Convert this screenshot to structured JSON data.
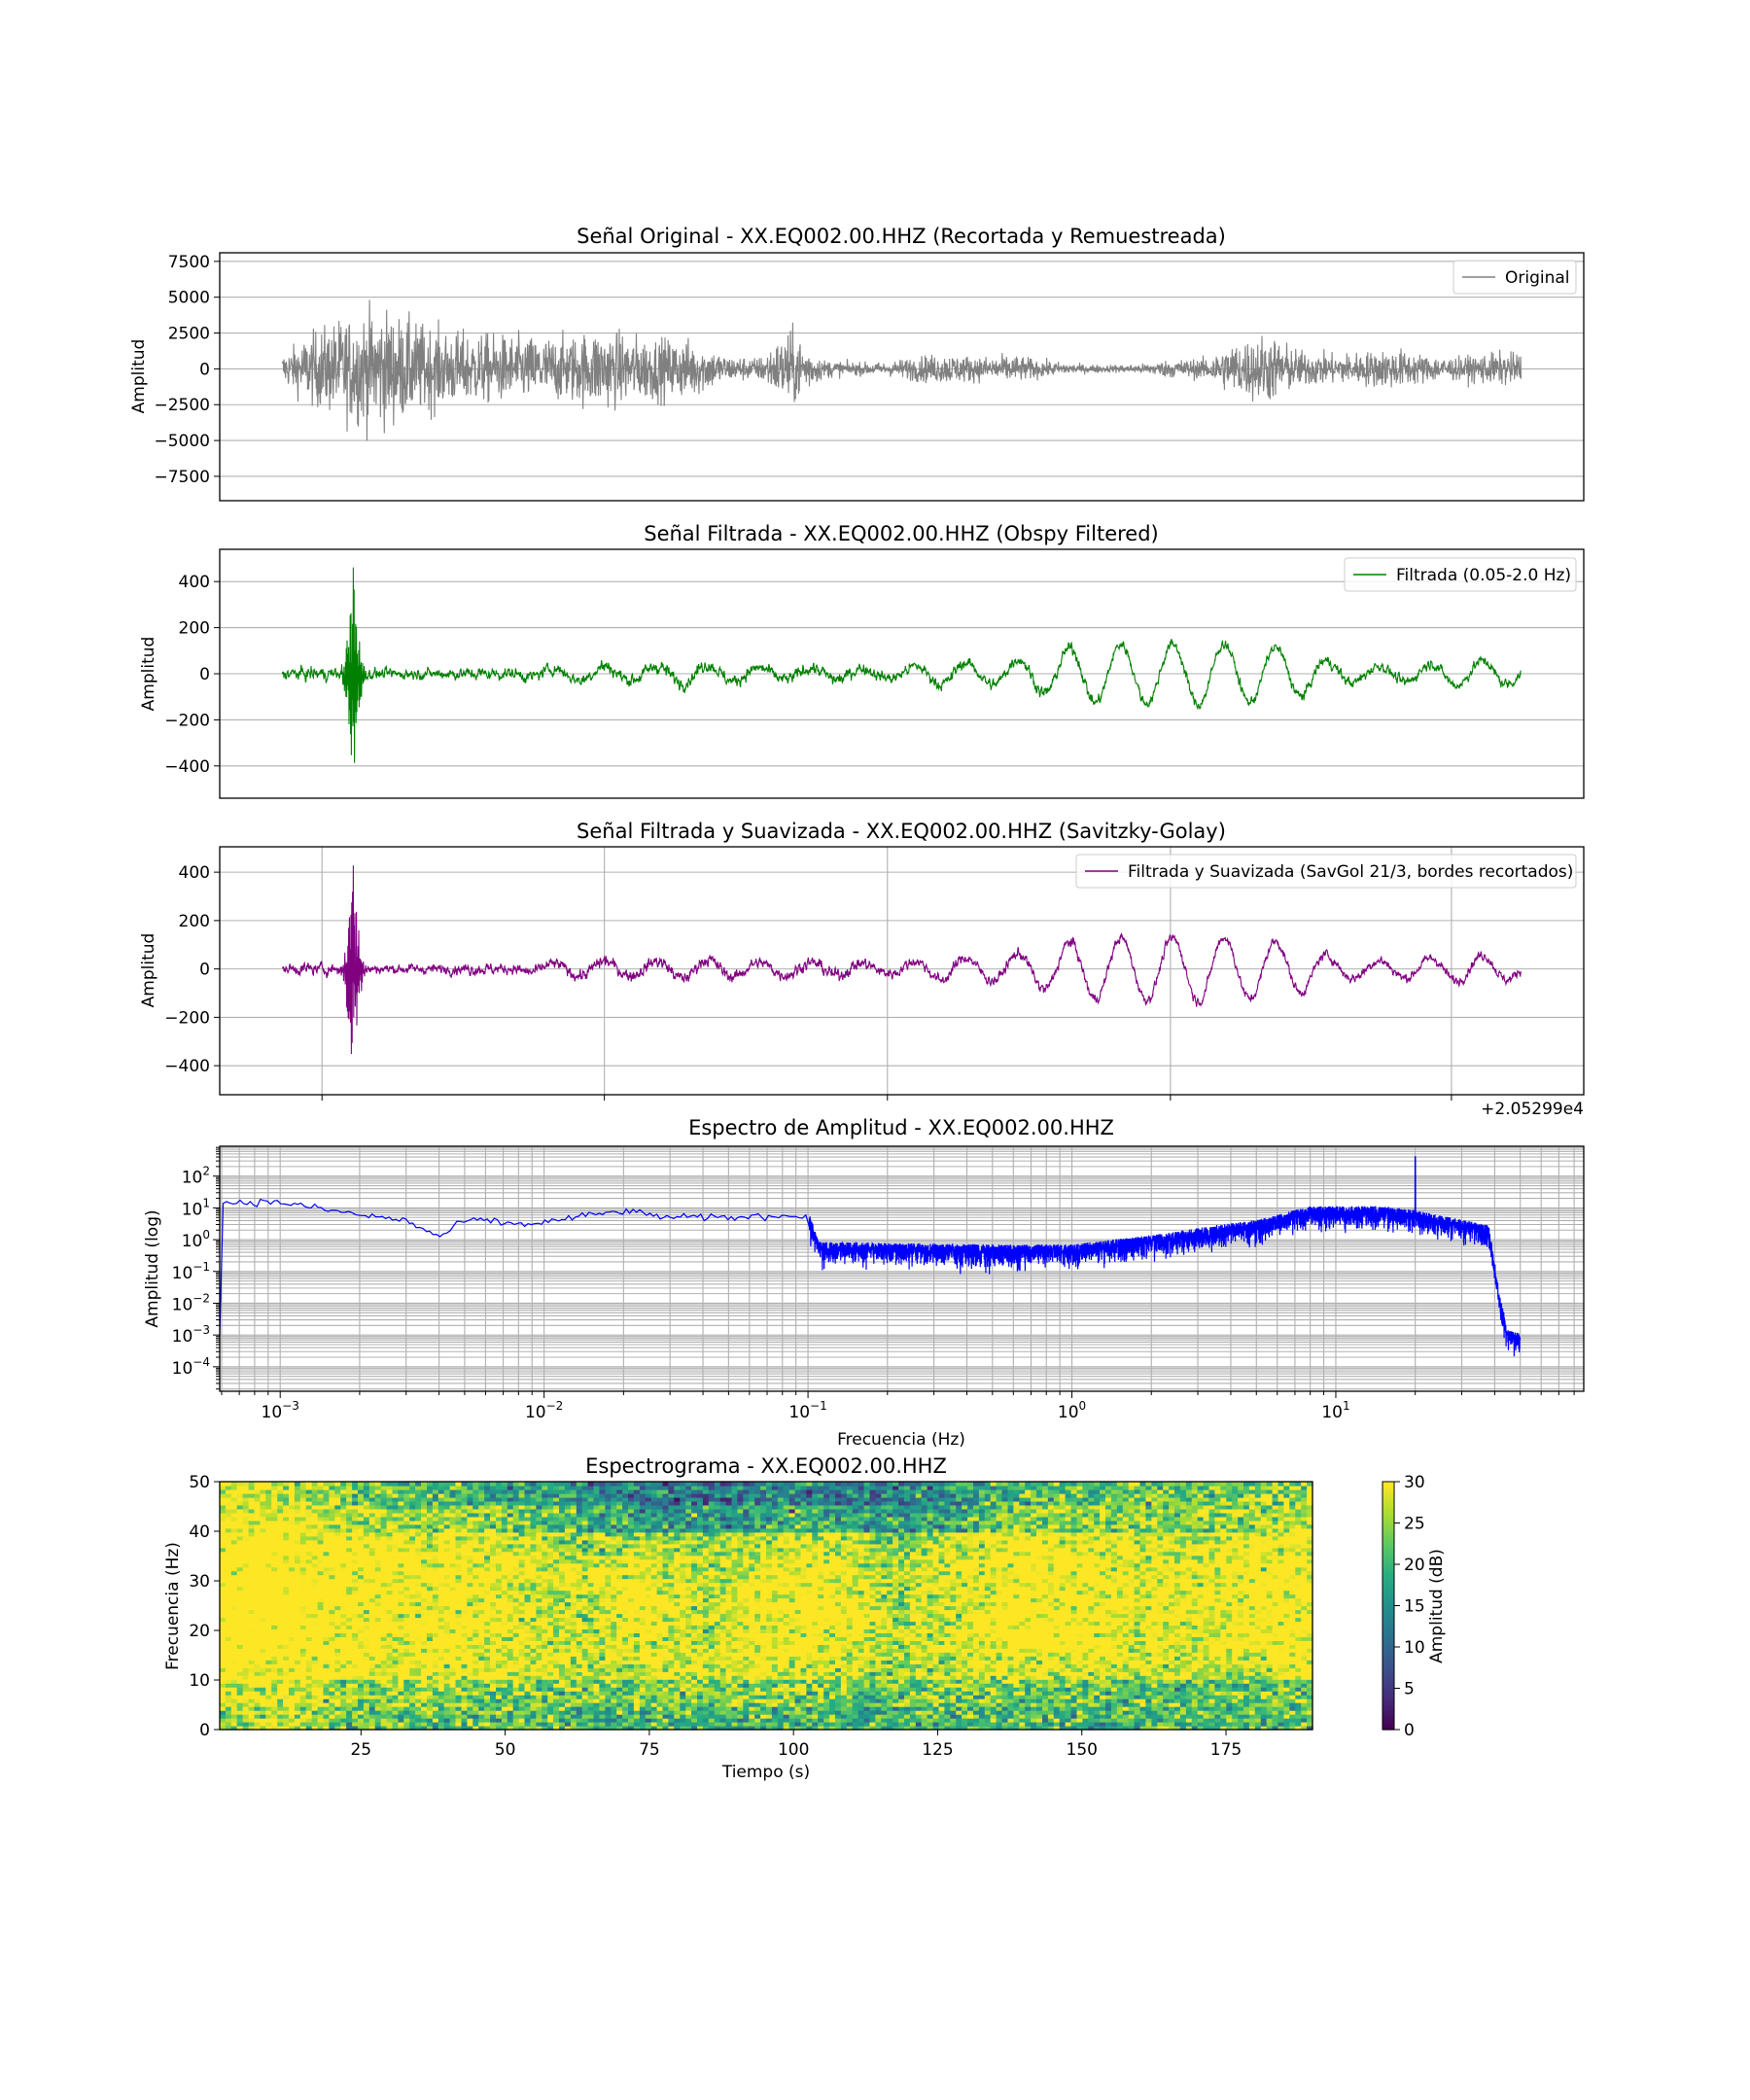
{
  "chart_data": [
    {
      "type": "line",
      "title": "Señal Original - XX.EQ002.00.HHZ (Recortada y Remuestreada)",
      "ylabel": "Amplitud",
      "ylim": [
        -9200,
        8100
      ],
      "yticks": [
        -7500,
        -5000,
        -2500,
        0,
        2500,
        5000,
        7500
      ],
      "grid": "y",
      "legend": {
        "placement": "top-right",
        "entries": [
          "Original"
        ]
      },
      "color": "#808080",
      "series": [
        {
          "name": "Original",
          "envelope": [
            1600,
            4000,
            5500,
            6500,
            5200,
            4200,
            3800,
            3600,
            3400,
            3500,
            4300,
            3600,
            3300,
            3000,
            1400,
            1200,
            4200,
            1000,
            700,
            700,
            1400,
            1600,
            1300,
            1500,
            900,
            500,
            400,
            500,
            1000,
            1100,
            2800,
            3800,
            2000,
            1600,
            1800,
            2200,
            1500,
            1200,
            1700,
            1800
          ]
        }
      ]
    },
    {
      "type": "line",
      "title": "Señal Filtrada - XX.EQ002.00.HHZ (Obspy Filtered)",
      "ylabel": "Amplitud",
      "ylim": [
        -540,
        540
      ],
      "yticks": [
        -400,
        -200,
        0,
        200,
        400
      ],
      "grid": "y",
      "legend": {
        "placement": "top-right",
        "entries": [
          "Filtrada (0.05-2.0 Hz)"
        ]
      },
      "color": "#008000",
      "series": [
        {
          "name": "Filtrada (0.05-2.0 Hz)",
          "noise_envelope": [
            45,
            60,
            50,
            45,
            45,
            45,
            55,
            50,
            50,
            50,
            60,
            55,
            60,
            55,
            55,
            50,
            55,
            60,
            55,
            50,
            50,
            50,
            50,
            50,
            55,
            50,
            45,
            45,
            45,
            45,
            45,
            45,
            45,
            45,
            45,
            45,
            45,
            45,
            45,
            45
          ],
          "oscillation_envelope": [
            0,
            0,
            0,
            0,
            0,
            0,
            0,
            0,
            20,
            30,
            40,
            30,
            40,
            50,
            40,
            30,
            30,
            30,
            30,
            20,
            40,
            60,
            50,
            70,
            100,
            140,
            150,
            150,
            150,
            160,
            150,
            140,
            120,
            60,
            40,
            40,
            50,
            60,
            70,
            40
          ],
          "spike": {
            "position": 0.057,
            "max": 480,
            "min": -480
          }
        }
      ]
    },
    {
      "type": "line",
      "title": "Señal Filtrada y Suavizada - XX.EQ002.00.HHZ (Savitzky-Golay)",
      "ylabel": "Amplitud",
      "ylim": [
        -520,
        505
      ],
      "yticks": [
        -400,
        -200,
        0,
        200,
        400
      ],
      "grid": "both",
      "x_offset_label": "+2.05299e4",
      "legend": {
        "placement": "top-right",
        "entries": [
          "Filtrada y Suavizada (SavGol 21/3, bordes recortados)"
        ]
      },
      "color": "#800080",
      "series": [
        {
          "name": "Filtrada y Suavizada (SavGol 21/3, bordes recortados)",
          "noise_envelope": [
            40,
            55,
            45,
            40,
            40,
            40,
            50,
            45,
            45,
            45,
            55,
            50,
            55,
            50,
            50,
            45,
            50,
            55,
            50,
            45,
            45,
            45,
            45,
            45,
            50,
            45,
            40,
            40,
            40,
            40,
            40,
            40,
            40,
            40,
            40,
            40,
            40,
            40,
            40,
            40
          ],
          "oscillation_envelope": [
            0,
            0,
            0,
            0,
            0,
            0,
            0,
            0,
            20,
            30,
            40,
            30,
            40,
            50,
            40,
            30,
            30,
            30,
            30,
            20,
            40,
            60,
            50,
            70,
            100,
            140,
            150,
            150,
            150,
            160,
            150,
            140,
            120,
            60,
            40,
            40,
            50,
            60,
            70,
            40
          ],
          "spike": {
            "position": 0.057,
            "max": 455,
            "min": -475
          }
        }
      ]
    },
    {
      "type": "line",
      "title": "Espectro de Amplitud - XX.EQ002.00.HHZ",
      "xlabel": "Frecuencia (Hz)",
      "ylabel": "Amplitud (log)",
      "xscale": "log",
      "yscale": "log",
      "xlim": [
        0.00059,
        87
      ],
      "ylim": [
        1.7e-05,
        870
      ],
      "xticks": [
        "10^-3",
        "10^-2",
        "10^-1",
        "10^0",
        "10^1"
      ],
      "yticks": [
        "10^-4",
        "10^-3",
        "10^-2",
        "10^-1",
        "10^0",
        "10^1",
        "10^2"
      ],
      "grid": "both-minor",
      "color": "#0000ff",
      "trend": [
        [
          0.0006,
          15
        ],
        [
          0.001,
          15
        ],
        [
          0.002,
          6
        ],
        [
          0.003,
          4
        ],
        [
          0.004,
          1.2
        ],
        [
          0.005,
          4
        ],
        [
          0.006,
          4
        ],
        [
          0.008,
          3
        ],
        [
          0.01,
          3.5
        ],
        [
          0.015,
          6
        ],
        [
          0.02,
          8
        ],
        [
          0.03,
          5
        ],
        [
          0.05,
          5
        ],
        [
          0.1,
          6
        ],
        [
          0.11,
          0.6
        ],
        [
          0.5,
          0.5
        ],
        [
          1,
          0.5
        ],
        [
          2,
          1
        ],
        [
          5,
          3
        ],
        [
          8,
          8
        ],
        [
          15,
          8
        ],
        [
          20,
          6
        ],
        [
          30,
          3
        ],
        [
          38,
          2
        ],
        [
          42,
          0.01
        ],
        [
          45,
          0.001
        ],
        [
          50,
          0.0008
        ]
      ],
      "peak": [
        20,
        400
      ]
    },
    {
      "type": "heatmap",
      "title": "Espectrograma - XX.EQ002.00.HHZ",
      "xlabel": "Tiempo (s)",
      "ylabel": "Frecuencia (Hz)",
      "xlim": [
        0.5,
        190
      ],
      "ylim": [
        0,
        50
      ],
      "xticks": [
        25,
        50,
        75,
        100,
        125,
        150,
        175
      ],
      "yticks": [
        0,
        10,
        20,
        30,
        40,
        50
      ],
      "colormap": "viridis",
      "colorbar": {
        "label": "Amplitud (dB)",
        "range": [
          0,
          30
        ],
        "ticks": [
          0,
          5,
          10,
          15,
          20,
          25,
          30
        ]
      },
      "time_bins": [
        5,
        15,
        25,
        35,
        45,
        55,
        65,
        75,
        85,
        95,
        105,
        115,
        125,
        135,
        145,
        155,
        165,
        175,
        185
      ],
      "freq_bins": [
        2.5,
        7.5,
        12.5,
        17.5,
        22.5,
        27.5,
        32.5,
        37.5,
        42.5,
        47.5
      ],
      "values_db": [
        [
          24,
          30,
          22,
          22,
          22,
          22,
          20,
          20,
          20,
          21,
          20,
          19,
          20,
          20,
          20,
          20,
          20,
          21,
          22
        ],
        [
          30,
          30,
          26,
          26,
          25,
          24,
          23,
          24,
          23,
          24,
          24,
          22,
          23,
          23,
          23,
          23,
          22,
          23,
          24
        ],
        [
          34,
          34,
          32,
          30,
          30,
          29,
          28,
          30,
          28,
          30,
          30,
          27,
          28,
          30,
          30,
          29,
          28,
          28,
          30
        ],
        [
          36,
          36,
          34,
          32,
          32,
          30,
          28,
          32,
          28,
          32,
          32,
          28,
          29,
          34,
          33,
          31,
          30,
          32,
          34
        ],
        [
          36,
          36,
          34,
          33,
          33,
          30,
          27,
          34,
          27,
          33,
          34,
          28,
          29,
          34,
          34,
          31,
          31,
          33,
          34
        ],
        [
          36,
          36,
          34,
          33,
          33,
          30,
          28,
          34,
          28,
          32,
          33,
          27,
          30,
          34,
          34,
          32,
          31,
          33,
          34
        ],
        [
          36,
          35,
          34,
          33,
          33,
          31,
          28,
          32,
          27,
          31,
          33,
          27,
          30,
          33,
          33,
          31,
          31,
          32,
          34
        ],
        [
          35,
          34,
          32,
          32,
          32,
          30,
          24,
          28,
          25,
          29,
          30,
          24,
          28,
          32,
          31,
          30,
          29,
          31,
          32
        ],
        [
          32,
          32,
          28,
          26,
          26,
          24,
          20,
          17,
          16,
          18,
          19,
          16,
          19,
          24,
          26,
          24,
          24,
          26,
          28
        ],
        [
          30,
          29,
          25,
          22,
          20,
          18,
          15,
          13,
          12,
          13,
          14,
          12,
          15,
          20,
          22,
          22,
          22,
          24,
          26
        ]
      ]
    }
  ]
}
